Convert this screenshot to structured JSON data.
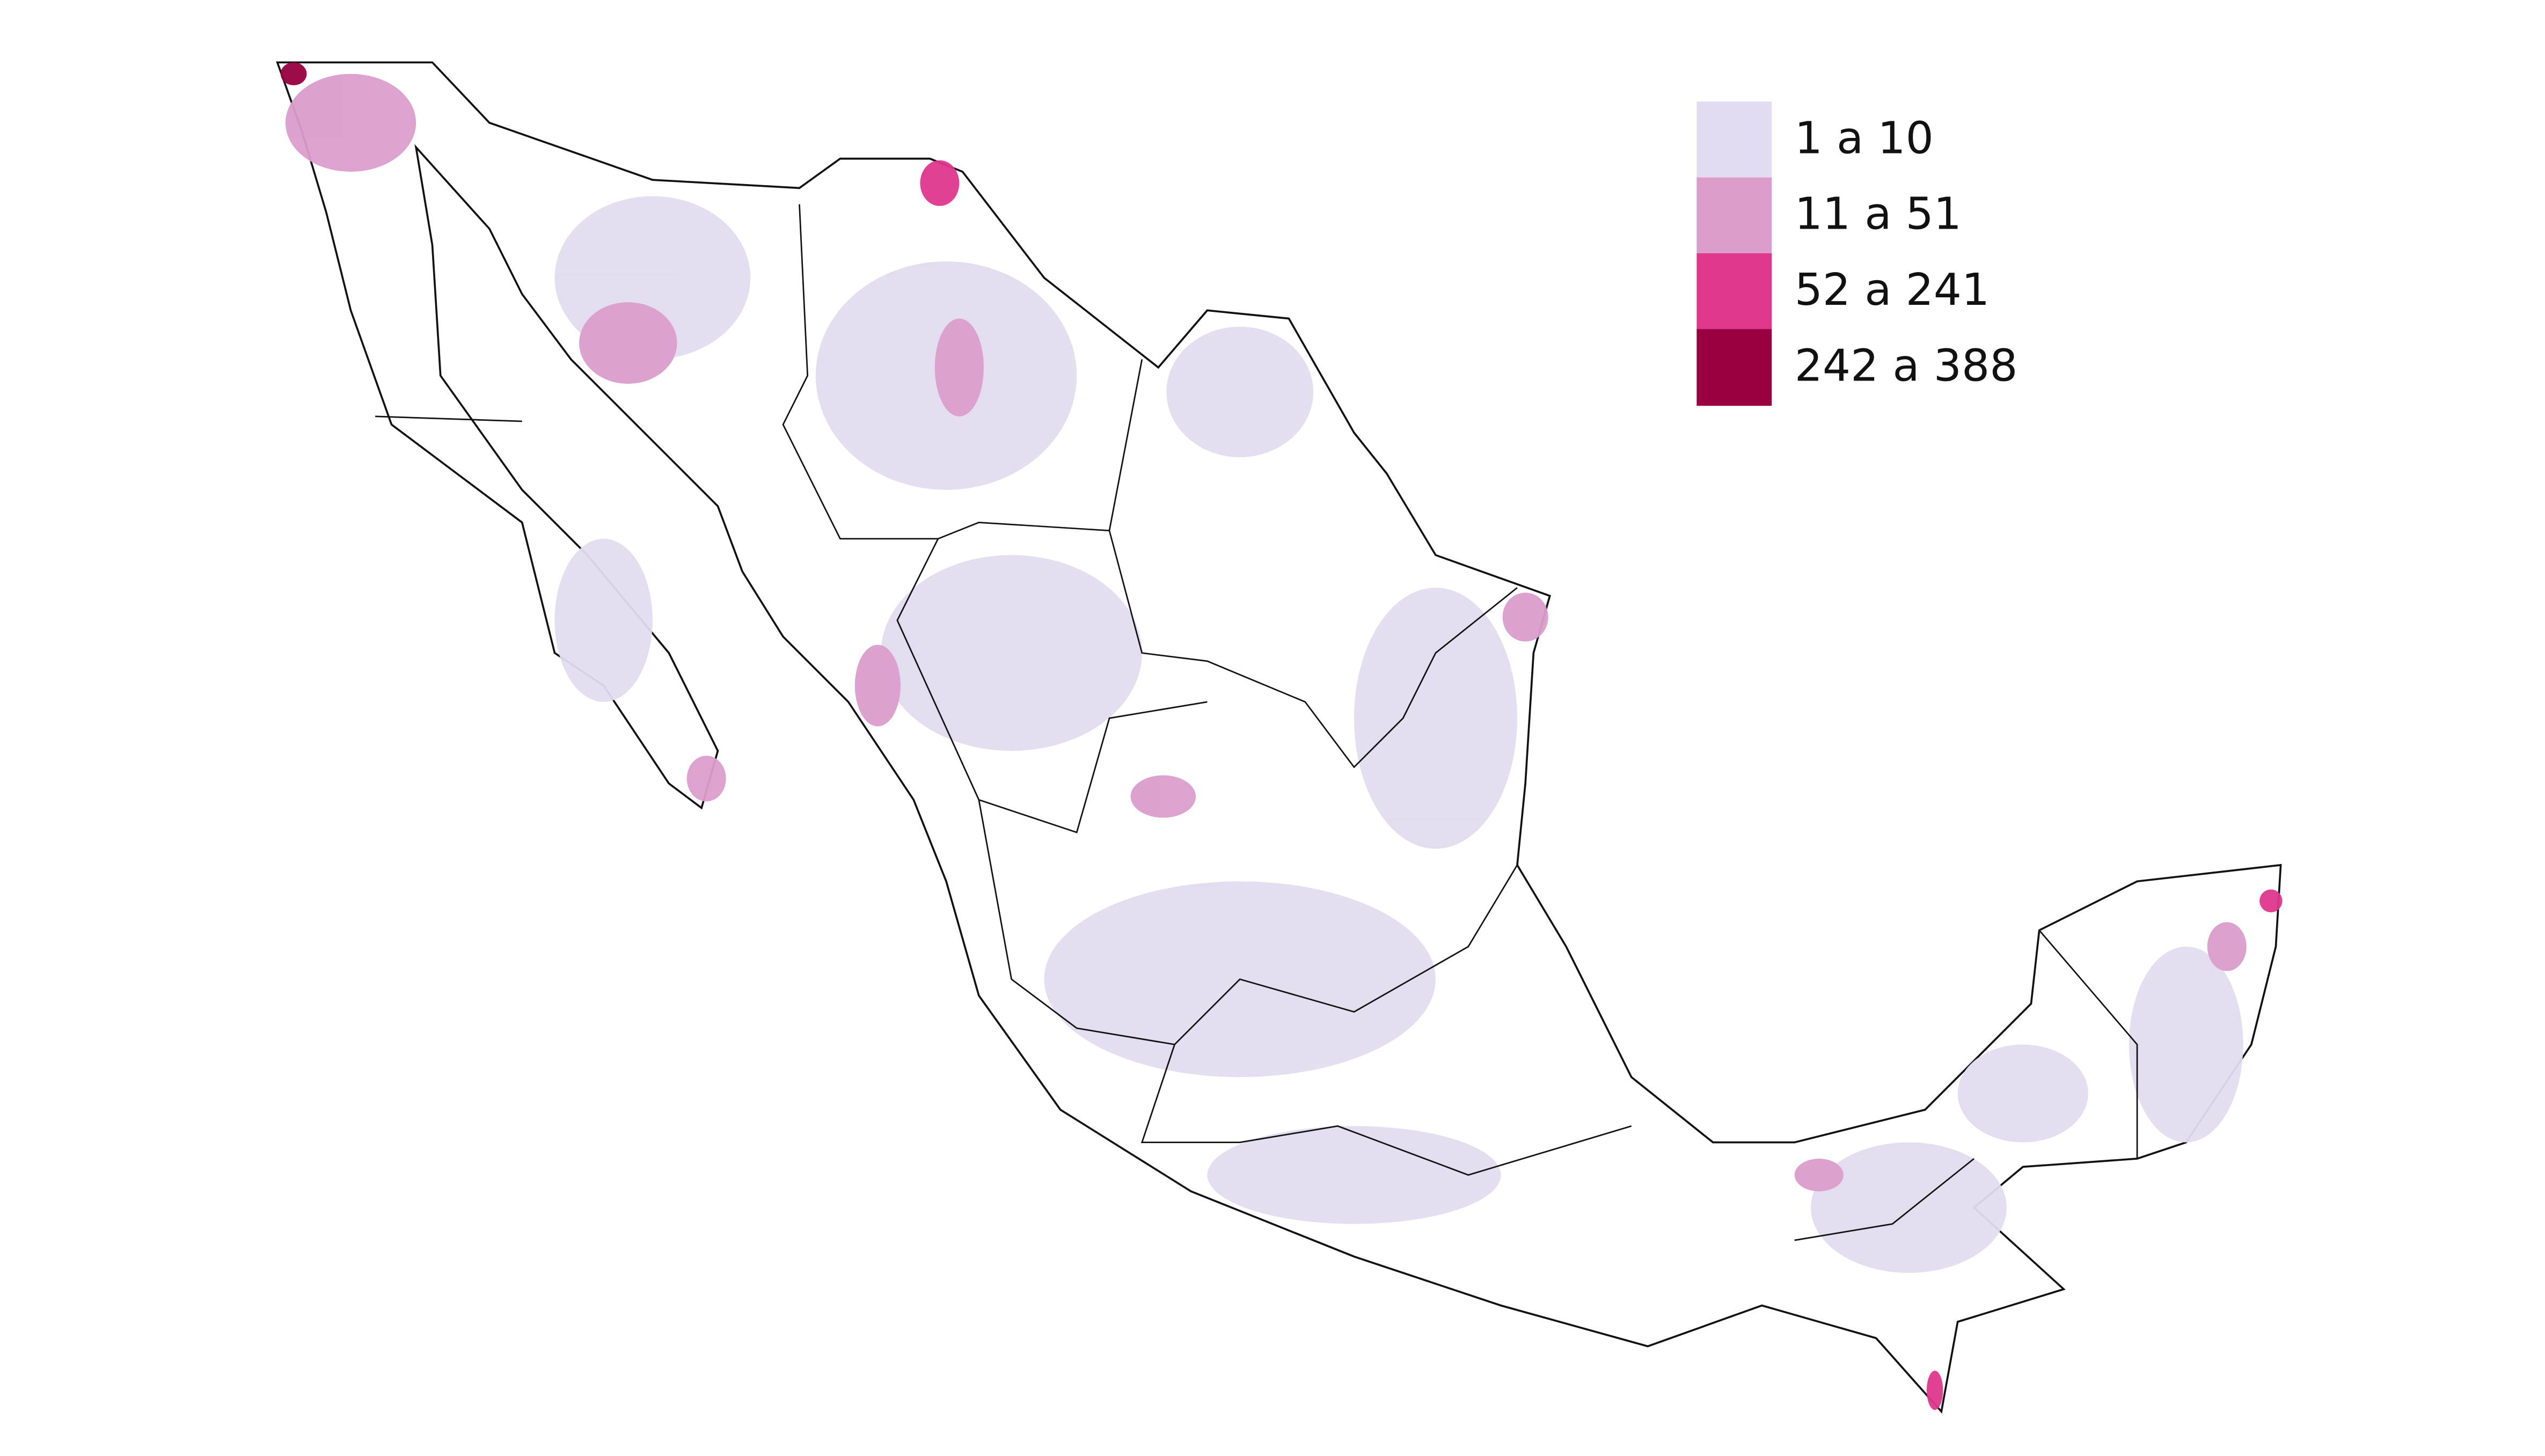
{
  "legend": {
    "items": [
      {
        "label": "1 a 10",
        "color": "#e1dcef"
      },
      {
        "label": "11 a 51",
        "color": "#db9dcc"
      },
      {
        "label": "52 a 241",
        "color": "#df378c"
      },
      {
        "label": "242 a 388",
        "color": "#98003f"
      }
    ]
  }
}
